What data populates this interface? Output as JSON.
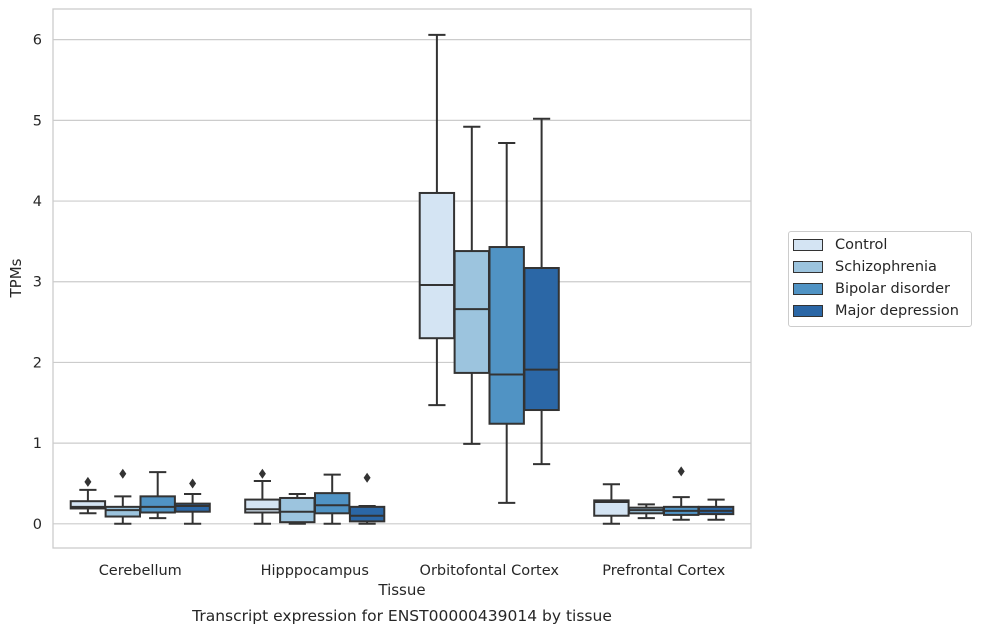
{
  "chart_data": {
    "type": "box",
    "title": "Transcript expression for ENST00000439014 by tissue",
    "xlabel": "Tissue",
    "ylabel": "TPMs",
    "ylim": [
      -0.3,
      6.38
    ],
    "yticks": [
      0,
      1,
      2,
      3,
      4,
      5,
      6
    ],
    "grid": "horizontal",
    "legend_position": "center-right",
    "categories": [
      "Cerebellum",
      "Hipppocampus",
      "Orbitofontal Cortex",
      "Prefrontal Cortex"
    ],
    "series": [
      {
        "name": "Control",
        "color": "#d4e4f3",
        "boxes": [
          {
            "whislo": 0.13,
            "q1": 0.19,
            "med": 0.21,
            "q3": 0.28,
            "whishi": 0.42,
            "fliers": [
              0.52
            ]
          },
          {
            "whislo": 0.0,
            "q1": 0.14,
            "med": 0.18,
            "q3": 0.3,
            "whishi": 0.53,
            "fliers": [
              0.62
            ]
          },
          {
            "whislo": 1.47,
            "q1": 2.3,
            "med": 2.96,
            "q3": 4.1,
            "whishi": 6.06,
            "fliers": []
          },
          {
            "whislo": 0.0,
            "q1": 0.1,
            "med": 0.27,
            "q3": 0.29,
            "whishi": 0.49,
            "fliers": []
          }
        ]
      },
      {
        "name": "Schizophrenia",
        "color": "#9cc4de",
        "boxes": [
          {
            "whislo": 0.0,
            "q1": 0.09,
            "med": 0.17,
            "q3": 0.21,
            "whishi": 0.34,
            "fliers": [
              0.62
            ]
          },
          {
            "whislo": 0.0,
            "q1": 0.02,
            "med": 0.15,
            "q3": 0.32,
            "whishi": 0.37,
            "fliers": []
          },
          {
            "whislo": 0.99,
            "q1": 1.87,
            "med": 2.66,
            "q3": 3.38,
            "whishi": 4.92,
            "fliers": []
          },
          {
            "whislo": 0.07,
            "q1": 0.13,
            "med": 0.17,
            "q3": 0.2,
            "whishi": 0.24,
            "fliers": []
          }
        ]
      },
      {
        "name": "Bipolar disorder",
        "color": "#5093c4",
        "boxes": [
          {
            "whislo": 0.07,
            "q1": 0.14,
            "med": 0.21,
            "q3": 0.34,
            "whishi": 0.64,
            "fliers": []
          },
          {
            "whislo": 0.0,
            "q1": 0.13,
            "med": 0.23,
            "q3": 0.38,
            "whishi": 0.61,
            "fliers": []
          },
          {
            "whislo": 0.26,
            "q1": 1.24,
            "med": 1.85,
            "q3": 3.43,
            "whishi": 4.72,
            "fliers": []
          },
          {
            "whislo": 0.05,
            "q1": 0.11,
            "med": 0.16,
            "q3": 0.21,
            "whishi": 0.33,
            "fliers": [
              0.65
            ]
          }
        ]
      },
      {
        "name": "Major depression",
        "color": "#2b67a6",
        "boxes": [
          {
            "whislo": 0.0,
            "q1": 0.15,
            "med": 0.22,
            "q3": 0.25,
            "whishi": 0.37,
            "fliers": [
              0.5
            ]
          },
          {
            "whislo": 0.0,
            "q1": 0.03,
            "med": 0.1,
            "q3": 0.21,
            "whishi": 0.22,
            "fliers": [
              0.57
            ]
          },
          {
            "whislo": 0.74,
            "q1": 1.41,
            "med": 1.91,
            "q3": 3.17,
            "whishi": 5.02,
            "fliers": []
          },
          {
            "whislo": 0.05,
            "q1": 0.12,
            "med": 0.16,
            "q3": 0.21,
            "whishi": 0.3,
            "fliers": []
          }
        ]
      }
    ]
  }
}
